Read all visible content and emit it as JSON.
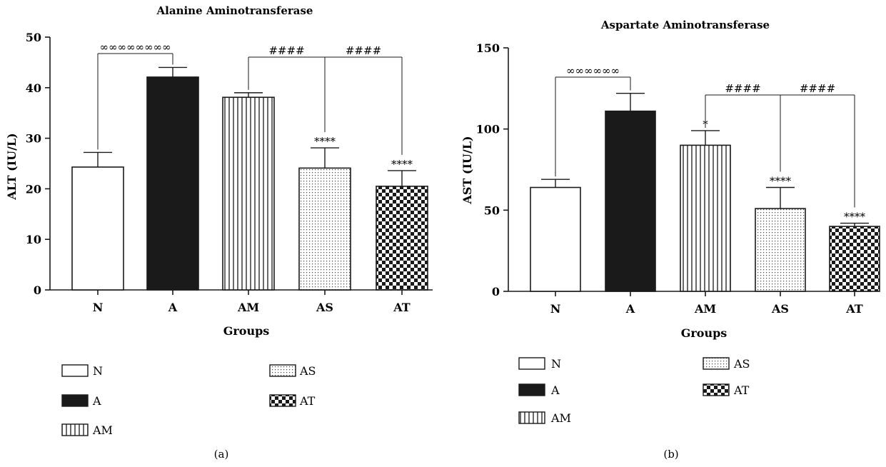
{
  "colors": {
    "ink": "#1a1a1a",
    "background": "#ffffff"
  },
  "chart_data": [
    {
      "type": "bar",
      "title": "Alanine Aminotransferase",
      "xlabel": "Groups",
      "ylabel": "ALT (IU/L)",
      "ylim": [
        0,
        50
      ],
      "yticks": [
        0,
        10,
        20,
        30,
        40,
        50
      ],
      "categories": [
        "N",
        "A",
        "AM",
        "AS",
        "AT"
      ],
      "values": [
        24.3,
        42.1,
        38.1,
        24.1,
        20.5
      ],
      "errors": [
        2.9,
        1.9,
        0.9,
        4.0,
        3.1
      ],
      "patterns": [
        "empty",
        "solid",
        "vertical-lines",
        "dots",
        "checker"
      ],
      "bar_labels": [
        "",
        "",
        "",
        "****",
        "****"
      ],
      "comparisons": [
        {
          "from": "N",
          "to": [
            "A"
          ],
          "label": "∞∞∞∞∞∞∞∞"
        },
        {
          "from": "AM",
          "to": [
            "AS"
          ],
          "label": "####"
        },
        {
          "from": "AS",
          "to": [
            "AT"
          ],
          "label": "####"
        }
      ],
      "legend": [
        "N",
        "A",
        "AM",
        "AS",
        "AT"
      ],
      "caption": "(a)"
    },
    {
      "type": "bar",
      "title": "Aspartate Aminotransferase",
      "xlabel": "Groups",
      "ylabel": "AST (IU/L)",
      "ylim": [
        0,
        150
      ],
      "yticks": [
        0,
        50,
        100,
        150
      ],
      "categories": [
        "N",
        "A",
        "AM",
        "AS",
        "AT"
      ],
      "values": [
        64,
        111,
        90,
        51,
        40
      ],
      "errors": [
        5,
        11,
        9,
        13,
        2
      ],
      "patterns": [
        "empty",
        "solid",
        "vertical-lines",
        "dots",
        "checker"
      ],
      "bar_labels": [
        "",
        "",
        "*",
        "****",
        "****"
      ],
      "comparisons": [
        {
          "from": "N",
          "to": [
            "A"
          ],
          "label": "∞∞∞∞∞∞"
        },
        {
          "from": "AM",
          "to": [
            "AS"
          ],
          "label": "####"
        },
        {
          "from": "AS",
          "to": [
            "AT"
          ],
          "label": "####"
        }
      ],
      "legend": [
        "N",
        "A",
        "AM",
        "AS",
        "AT"
      ],
      "caption": "(b)"
    }
  ]
}
